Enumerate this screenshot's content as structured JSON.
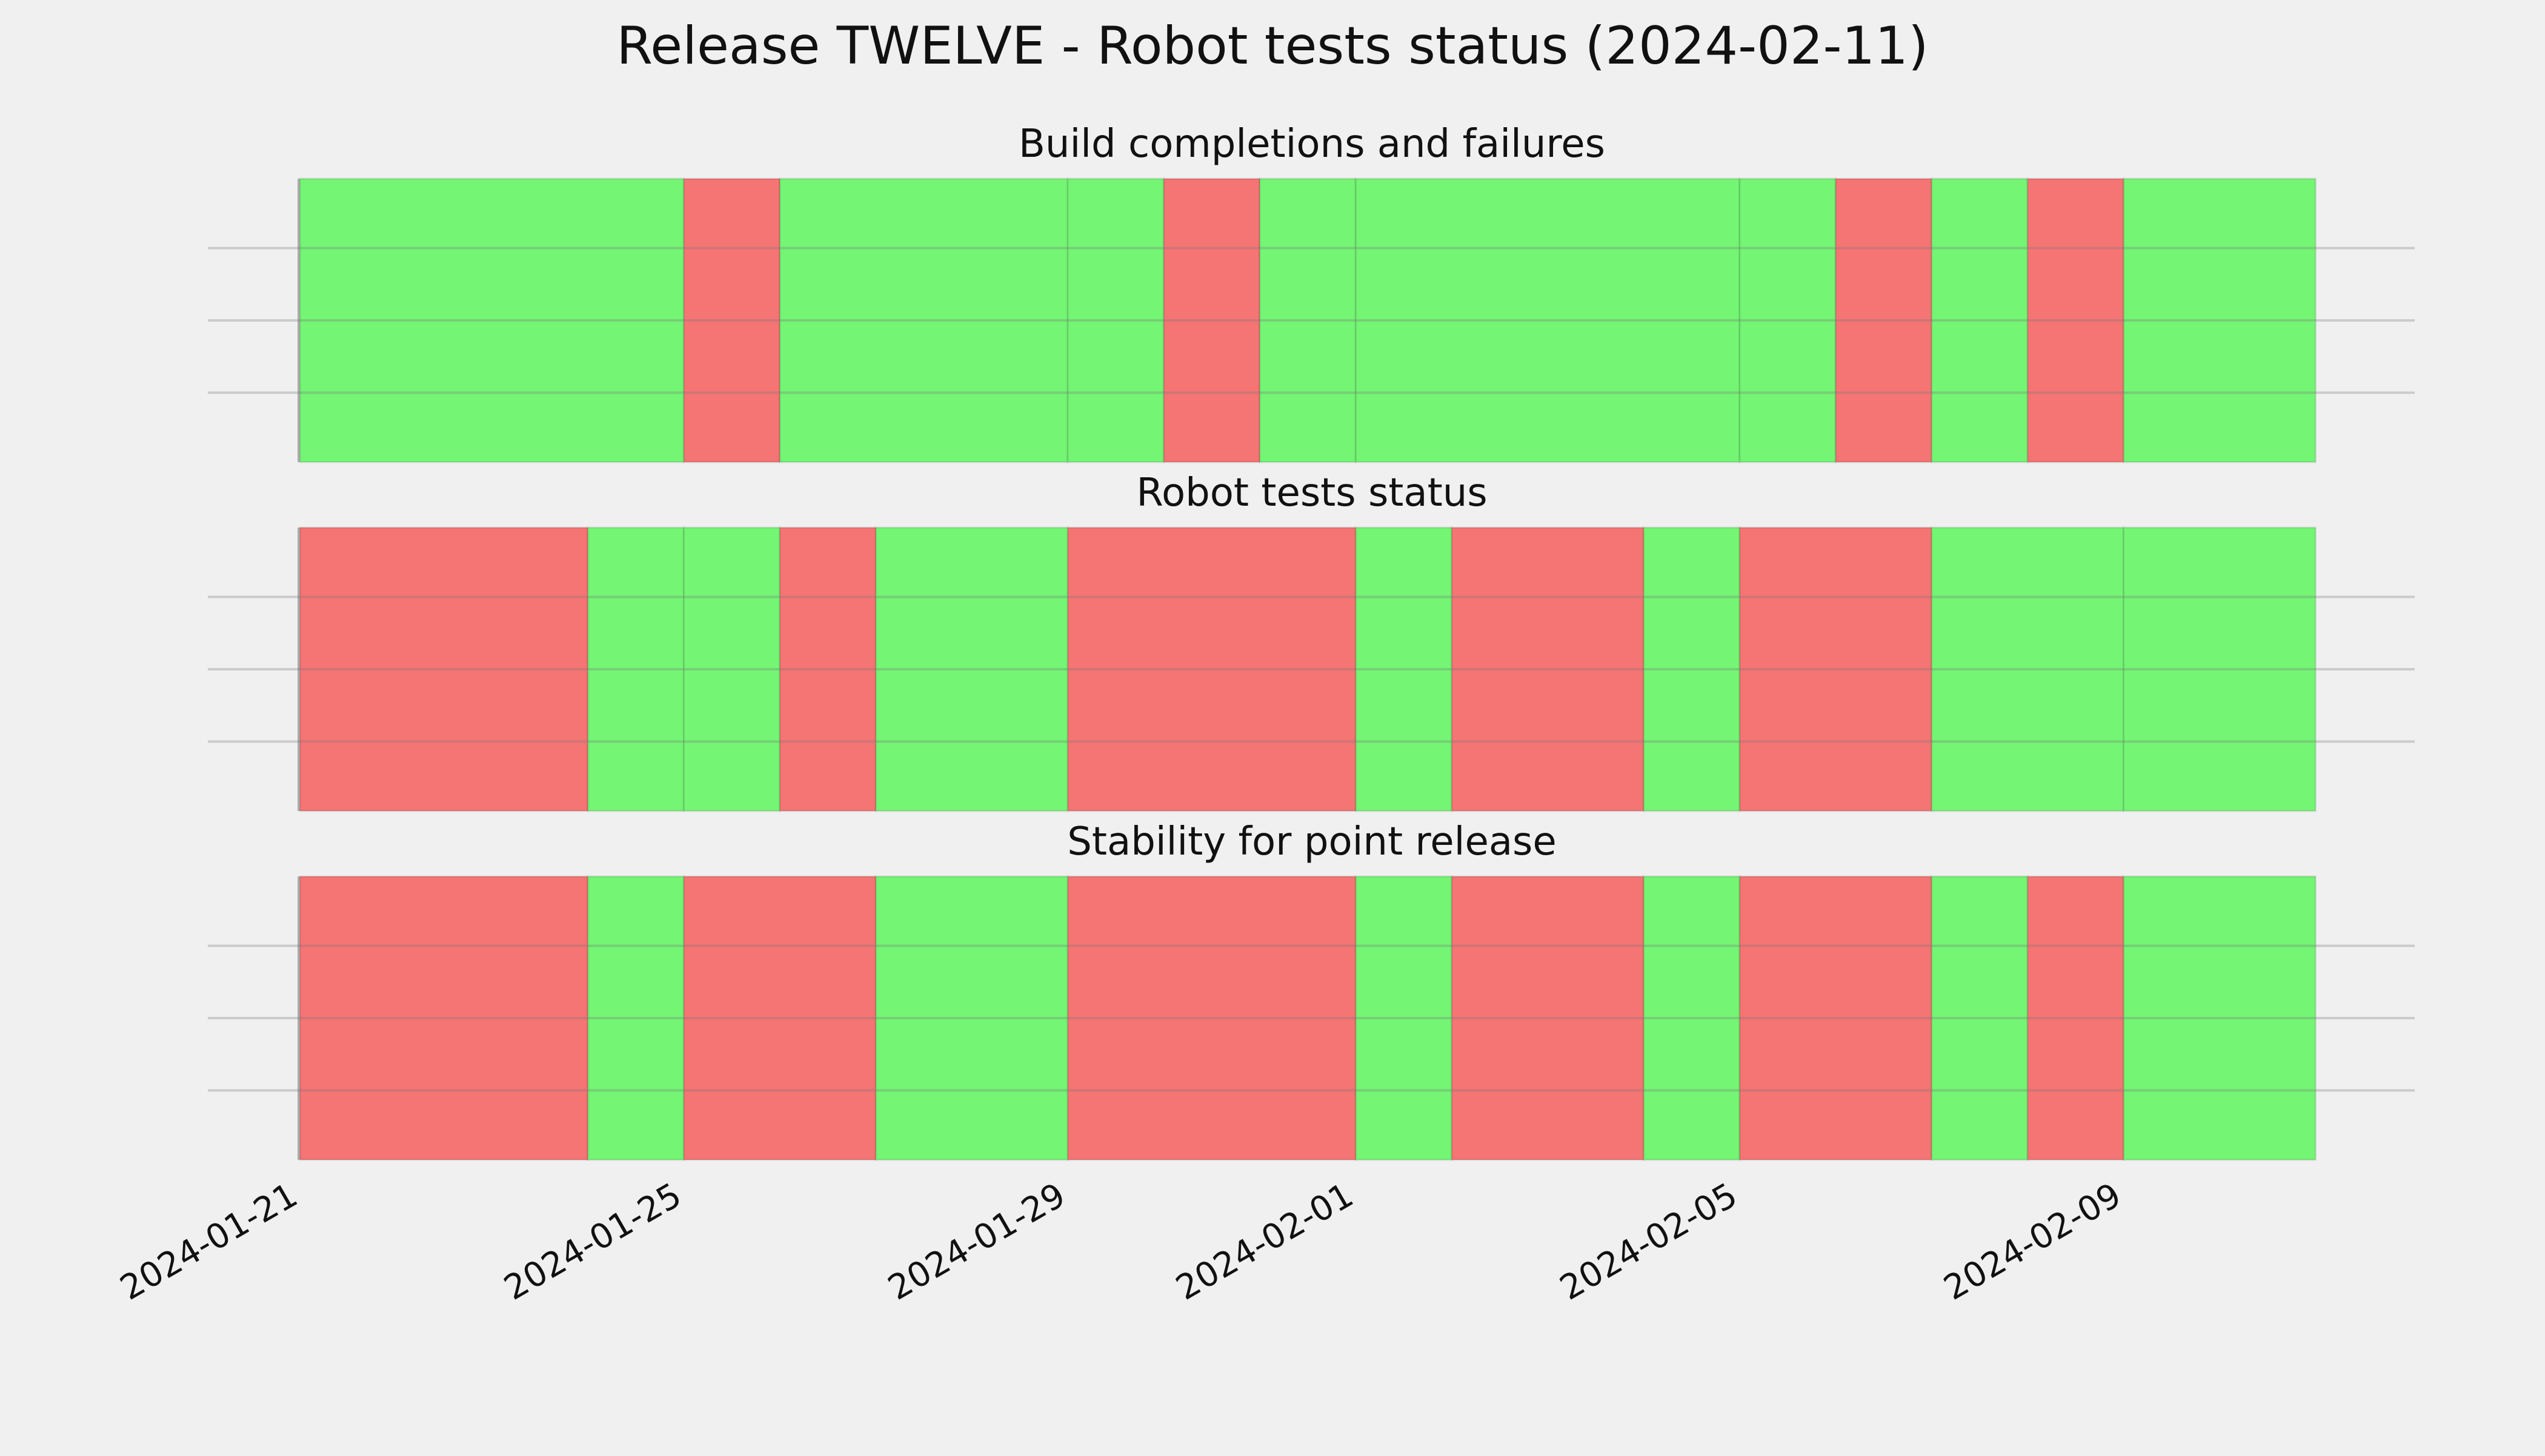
{
  "chart_data": {
    "type": "timeline",
    "title": "Release TWELVE - Robot tests status (2024-02-11)",
    "x_ticks": [
      "2024-01-21",
      "2024-01-25",
      "2024-01-29",
      "2024-02-01",
      "2024-02-05",
      "2024-02-09"
    ],
    "x_range": [
      "2024-01-21",
      "2024-02-11"
    ],
    "grid": true,
    "colors": {
      "pass": "#74f574",
      "fail": "#f57474",
      "background": "#f0f0f0",
      "grid": "#cbcbcb"
    },
    "panels": [
      {
        "title": "Build completions and failures",
        "segments": [
          {
            "start": "2024-01-21",
            "end": "2024-01-25",
            "status": "pass"
          },
          {
            "start": "2024-01-25",
            "end": "2024-01-26",
            "status": "fail"
          },
          {
            "start": "2024-01-26",
            "end": "2024-01-29",
            "status": "pass"
          },
          {
            "start": "2024-01-29",
            "end": "2024-01-30",
            "status": "pass"
          },
          {
            "start": "2024-01-30",
            "end": "2024-01-31",
            "status": "fail"
          },
          {
            "start": "2024-01-31",
            "end": "2024-02-01",
            "status": "pass"
          },
          {
            "start": "2024-02-01",
            "end": "2024-02-05",
            "status": "pass"
          },
          {
            "start": "2024-02-05",
            "end": "2024-02-06",
            "status": "pass"
          },
          {
            "start": "2024-02-06",
            "end": "2024-02-07",
            "status": "fail"
          },
          {
            "start": "2024-02-07",
            "end": "2024-02-08",
            "status": "pass"
          },
          {
            "start": "2024-02-08",
            "end": "2024-02-09",
            "status": "fail"
          },
          {
            "start": "2024-02-09",
            "end": "2024-02-11",
            "status": "pass"
          }
        ]
      },
      {
        "title": "Robot tests status",
        "segments": [
          {
            "start": "2024-01-21",
            "end": "2024-01-24",
            "status": "fail"
          },
          {
            "start": "2024-01-24",
            "end": "2024-01-25",
            "status": "pass"
          },
          {
            "start": "2024-01-25",
            "end": "2024-01-26",
            "status": "pass"
          },
          {
            "start": "2024-01-26",
            "end": "2024-01-27",
            "status": "fail"
          },
          {
            "start": "2024-01-27",
            "end": "2024-01-29",
            "status": "pass"
          },
          {
            "start": "2024-01-29",
            "end": "2024-02-01",
            "status": "fail"
          },
          {
            "start": "2024-02-01",
            "end": "2024-02-02",
            "status": "pass"
          },
          {
            "start": "2024-02-02",
            "end": "2024-02-04",
            "status": "fail"
          },
          {
            "start": "2024-02-04",
            "end": "2024-02-05",
            "status": "pass"
          },
          {
            "start": "2024-02-05",
            "end": "2024-02-07",
            "status": "fail"
          },
          {
            "start": "2024-02-07",
            "end": "2024-02-09",
            "status": "pass"
          },
          {
            "start": "2024-02-09",
            "end": "2024-02-11",
            "status": "pass"
          }
        ]
      },
      {
        "title": "Stability for point release",
        "segments": [
          {
            "start": "2024-01-21",
            "end": "2024-01-24",
            "status": "fail"
          },
          {
            "start": "2024-01-24",
            "end": "2024-01-25",
            "status": "pass"
          },
          {
            "start": "2024-01-25",
            "end": "2024-01-27",
            "status": "fail"
          },
          {
            "start": "2024-01-27",
            "end": "2024-01-29",
            "status": "pass"
          },
          {
            "start": "2024-01-29",
            "end": "2024-02-01",
            "status": "fail"
          },
          {
            "start": "2024-02-01",
            "end": "2024-02-02",
            "status": "pass"
          },
          {
            "start": "2024-02-02",
            "end": "2024-02-04",
            "status": "fail"
          },
          {
            "start": "2024-02-04",
            "end": "2024-02-05",
            "status": "pass"
          },
          {
            "start": "2024-02-05",
            "end": "2024-02-07",
            "status": "fail"
          },
          {
            "start": "2024-02-07",
            "end": "2024-02-08",
            "status": "pass"
          },
          {
            "start": "2024-02-08",
            "end": "2024-02-09",
            "status": "fail"
          },
          {
            "start": "2024-02-09",
            "end": "2024-02-11",
            "status": "pass"
          }
        ]
      }
    ]
  }
}
